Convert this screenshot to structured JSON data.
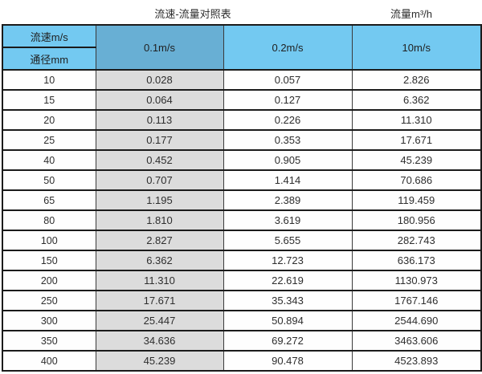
{
  "page": {
    "title_left": "流速-流量对照表",
    "title_right": "流量m³/h"
  },
  "table": {
    "corner": {
      "top_label": "流速m/s",
      "bottom_label": "通径mm"
    },
    "velocity_headers": [
      "0.1m/s",
      "0.2m/s",
      "10m/s"
    ],
    "rows": [
      {
        "diameter": "10",
        "values": [
          "0.028",
          "0.057",
          "2.826"
        ]
      },
      {
        "diameter": "15",
        "values": [
          "0.064",
          "0.127",
          "6.362"
        ]
      },
      {
        "diameter": "20",
        "values": [
          "0.113",
          "0.226",
          "11.310"
        ]
      },
      {
        "diameter": "25",
        "values": [
          "0.177",
          "0.353",
          "17.671"
        ]
      },
      {
        "diameter": "40",
        "values": [
          "0.452",
          "0.905",
          "45.239"
        ]
      },
      {
        "diameter": "50",
        "values": [
          "0.707",
          "1.414",
          "70.686"
        ]
      },
      {
        "diameter": "65",
        "values": [
          "1.195",
          "2.389",
          "119.459"
        ]
      },
      {
        "diameter": "80",
        "values": [
          "1.810",
          "3.619",
          "180.956"
        ]
      },
      {
        "diameter": "100",
        "values": [
          "2.827",
          "5.655",
          "282.743"
        ]
      },
      {
        "diameter": "150",
        "values": [
          "6.362",
          "12.723",
          "636.173"
        ]
      },
      {
        "diameter": "200",
        "values": [
          "11.310",
          "22.619",
          "1130.973"
        ]
      },
      {
        "diameter": "250",
        "values": [
          "17.671",
          "35.343",
          "1767.146"
        ]
      },
      {
        "diameter": "300",
        "values": [
          "25.447",
          "50.894",
          "2544.690"
        ]
      },
      {
        "diameter": "350",
        "values": [
          "34.636",
          "69.272",
          "3463.606"
        ]
      },
      {
        "diameter": "400",
        "values": [
          "45.239",
          "90.478",
          "4523.893"
        ]
      }
    ],
    "colors": {
      "header_blue": "#73c9f1",
      "header_blue_dark": "#68afd4",
      "gray_column": "#dcdcdc",
      "border": "#1b1b1b"
    }
  }
}
